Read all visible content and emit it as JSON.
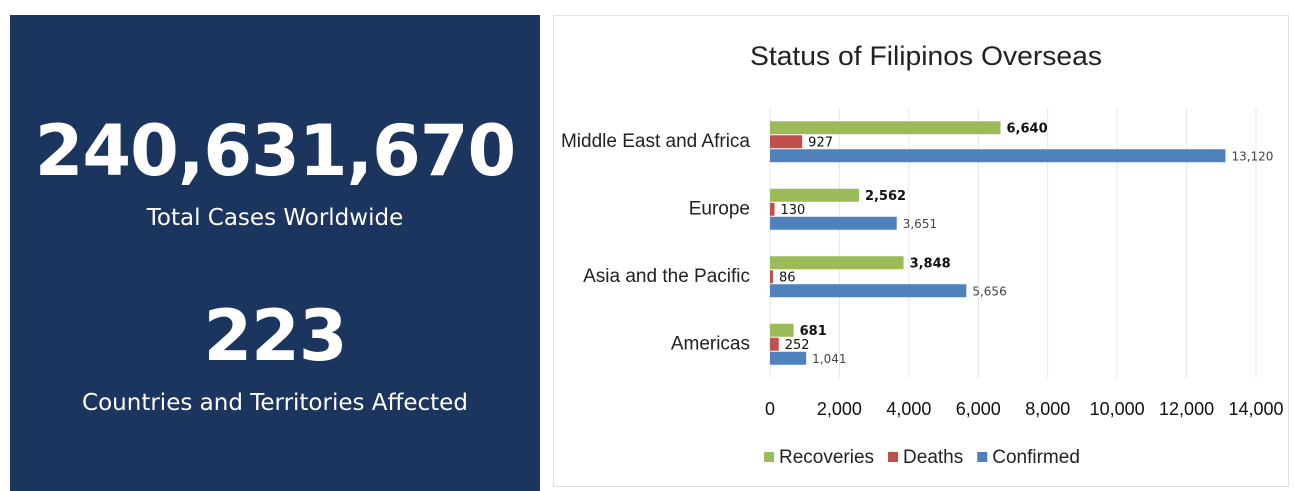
{
  "stats": [
    {
      "value": "240,631,670",
      "label": "Total Cases Worldwide"
    },
    {
      "value": "223",
      "label": "Countries and Territories Affected"
    }
  ],
  "chart_data": {
    "type": "bar",
    "orientation": "horizontal",
    "title": "Status of Filipinos Overseas",
    "categories": [
      "Middle East and Africa",
      "Europe",
      "Asia and the Pacific",
      "Americas"
    ],
    "series": [
      {
        "name": "Recoveries",
        "color": "#9bbb59",
        "values": [
          6640,
          2562,
          3848,
          681
        ],
        "value_labels": [
          "6,640",
          "2,562",
          "3,848",
          "681"
        ]
      },
      {
        "name": "Deaths",
        "color": "#c0504d",
        "values": [
          927,
          130,
          86,
          252
        ],
        "value_labels": [
          "927",
          "130",
          "86",
          "252"
        ]
      },
      {
        "name": "Confirmed",
        "color": "#4f81bd",
        "values": [
          13120,
          3651,
          5656,
          1041
        ],
        "value_labels": [
          "13,120",
          "3,651",
          "5,656",
          "1,041"
        ]
      }
    ],
    "xlim": [
      0,
      14000
    ],
    "xticks": [
      0,
      {
        "value": 2000,
        "label": "2,000"
      },
      {
        "value": 4000,
        "label": "4,000"
      },
      {
        "value": 6000,
        "label": "6,000"
      },
      {
        "value": 8000,
        "label": "8,000"
      },
      {
        "value": 10000,
        "label": "10,000"
      },
      {
        "value": 12000,
        "label": "12,000"
      },
      {
        "value": 14000,
        "label": "14,000"
      }
    ],
    "grid": true,
    "legend": "bottom"
  }
}
